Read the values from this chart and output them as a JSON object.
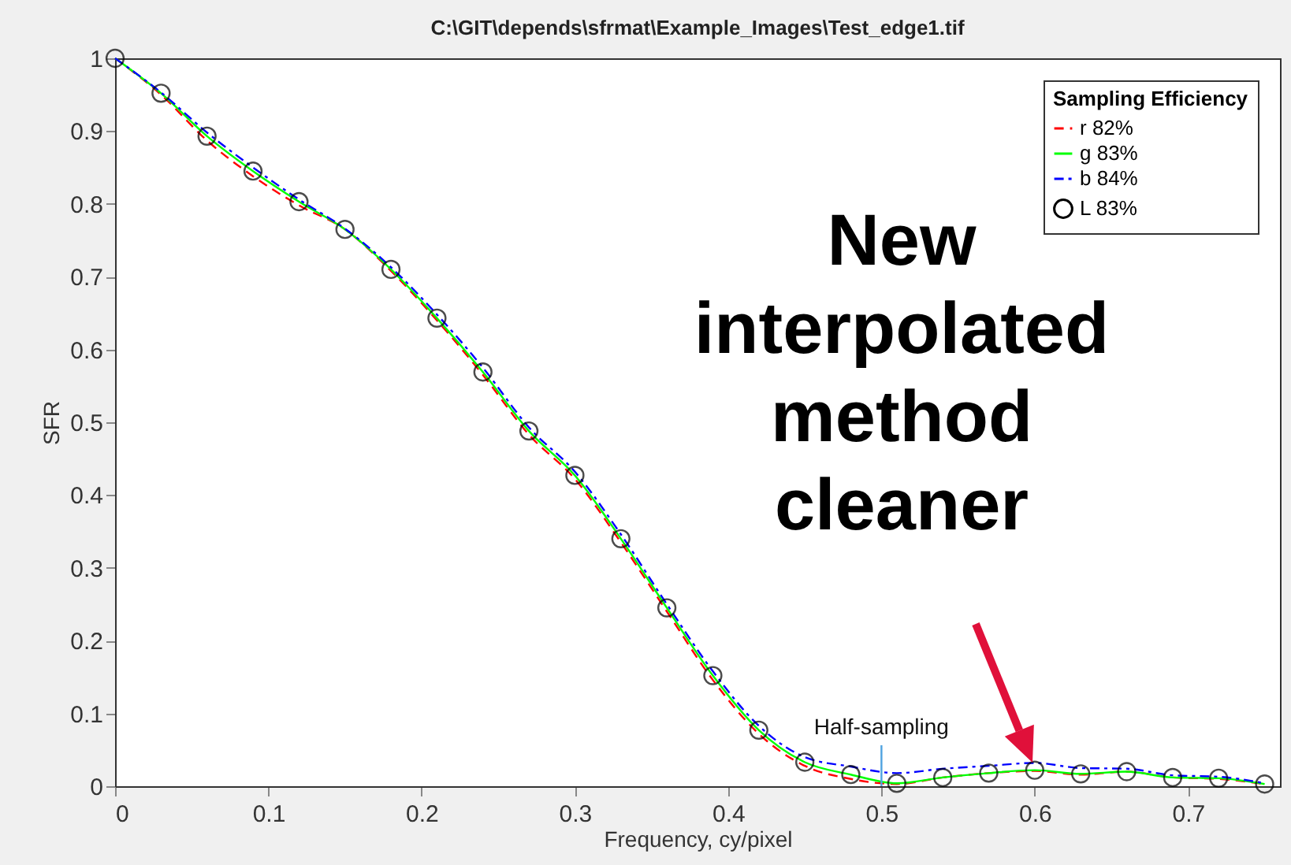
{
  "chart_data": {
    "type": "line",
    "title": "C:\\GIT\\depends\\sfrmat\\Example_Images\\Test_edge1.tif",
    "xlabel": "Frequency, cy/pixel",
    "ylabel": "SFR",
    "legend_title": "Sampling Efficiency",
    "legend": "top right",
    "grid": false,
    "x": [
      0,
      0.03,
      0.06,
      0.09,
      0.12,
      0.15,
      0.18,
      0.21,
      0.24,
      0.27,
      0.3,
      0.33,
      0.36,
      0.39,
      0.42,
      0.45,
      0.48,
      0.51,
      0.54,
      0.57,
      0.6,
      0.63,
      0.66,
      0.69,
      0.72,
      0.75
    ],
    "series": [
      {
        "name": "r  82%",
        "color": "#ff0000",
        "line_style": "dashed",
        "marker": "none",
        "values": [
          1,
          0.95,
          0.887,
          0.838,
          0.798,
          0.765,
          0.708,
          0.64,
          0.565,
          0.483,
          0.422,
          0.335,
          0.24,
          0.146,
          0.072,
          0.028,
          0.01,
          0.003,
          0.012,
          0.018,
          0.021,
          0.016,
          0.02,
          0.012,
          0.01,
          0.003
        ]
      },
      {
        "name": "g  83%",
        "color": "#00ff00",
        "line_style": "solid",
        "marker": "none",
        "values": [
          1,
          0.952,
          0.893,
          0.845,
          0.803,
          0.765,
          0.71,
          0.643,
          0.569,
          0.488,
          0.427,
          0.34,
          0.245,
          0.152,
          0.077,
          0.033,
          0.016,
          0.004,
          0.012,
          0.018,
          0.022,
          0.017,
          0.02,
          0.012,
          0.011,
          0.003
        ]
      },
      {
        "name": "b  84%",
        "color": "#0000ff",
        "line_style": "dashdot",
        "marker": "none",
        "values": [
          1,
          0.953,
          0.898,
          0.85,
          0.806,
          0.766,
          0.713,
          0.648,
          0.575,
          0.493,
          0.432,
          0.346,
          0.25,
          0.158,
          0.083,
          0.04,
          0.027,
          0.018,
          0.024,
          0.028,
          0.032,
          0.025,
          0.024,
          0.015,
          0.013,
          0.004
        ]
      },
      {
        "name": "L  83%",
        "type": "scatter",
        "color": "#000000",
        "marker": "circle",
        "values": [
          1,
          0.952,
          0.893,
          0.845,
          0.803,
          0.765,
          0.71,
          0.643,
          0.569,
          0.488,
          0.427,
          0.34,
          0.245,
          0.152,
          0.077,
          0.033,
          0.016,
          0.004,
          0.012,
          0.018,
          0.022,
          0.017,
          0.02,
          0.012,
          0.011,
          0.003
        ]
      }
    ],
    "xlim": [
      0,
      0.76
    ],
    "xticks": [
      0,
      0.1,
      0.2,
      0.3,
      0.4,
      0.5,
      0.6,
      0.7
    ],
    "ylim": [
      0,
      1
    ],
    "yticks": [
      0,
      0.1,
      0.2,
      0.3,
      0.4,
      0.5,
      0.6,
      0.7,
      0.8,
      0.9,
      1
    ],
    "ref_lines": [
      {
        "axis": "x",
        "value": 0.5,
        "label": "Half-sampling",
        "color": "#4fa3e0"
      }
    ],
    "annotations": [
      "New\ninterpolated\nmethod\ncleaner"
    ]
  }
}
